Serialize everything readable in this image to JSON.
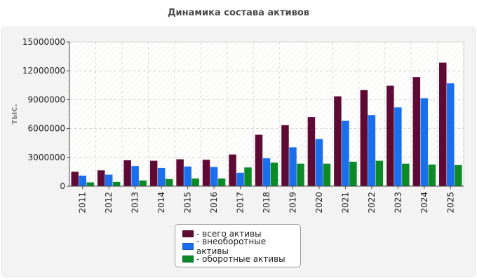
{
  "chart_data": {
    "type": "bar",
    "title": "Динамика состава активов",
    "ylabel": "тыс.",
    "xlabel": "",
    "ylim": [
      0,
      15000000
    ],
    "yticks": [
      0,
      3000000,
      6000000,
      9000000,
      12000000,
      15000000
    ],
    "grid": true,
    "legend_position": "bottom",
    "categories": [
      "2011",
      "2012",
      "2013",
      "2014",
      "2015",
      "2016",
      "2017",
      "2018",
      "2019",
      "2020",
      "2021",
      "2022",
      "2023",
      "2024",
      "2025"
    ],
    "series": [
      {
        "name": "- всего активы",
        "color": "#5f0a35",
        "values": [
          1500000,
          1650000,
          2700000,
          2650000,
          2800000,
          2750000,
          3300000,
          5350000,
          6350000,
          7200000,
          9350000,
          10000000,
          10450000,
          11350000,
          12850000
        ]
      },
      {
        "name": "- внеоборотные активы",
        "color": "#1a6fee",
        "values": [
          1100000,
          1200000,
          2100000,
          1900000,
          2050000,
          2000000,
          1400000,
          2900000,
          4050000,
          4900000,
          6800000,
          7400000,
          8200000,
          9150000,
          10700000
        ]
      },
      {
        "name": "- оборотные активы",
        "color": "#0c8a28",
        "values": [
          400000,
          450000,
          600000,
          750000,
          800000,
          800000,
          1950000,
          2450000,
          2350000,
          2350000,
          2550000,
          2650000,
          2350000,
          2250000,
          2200000
        ]
      }
    ]
  }
}
